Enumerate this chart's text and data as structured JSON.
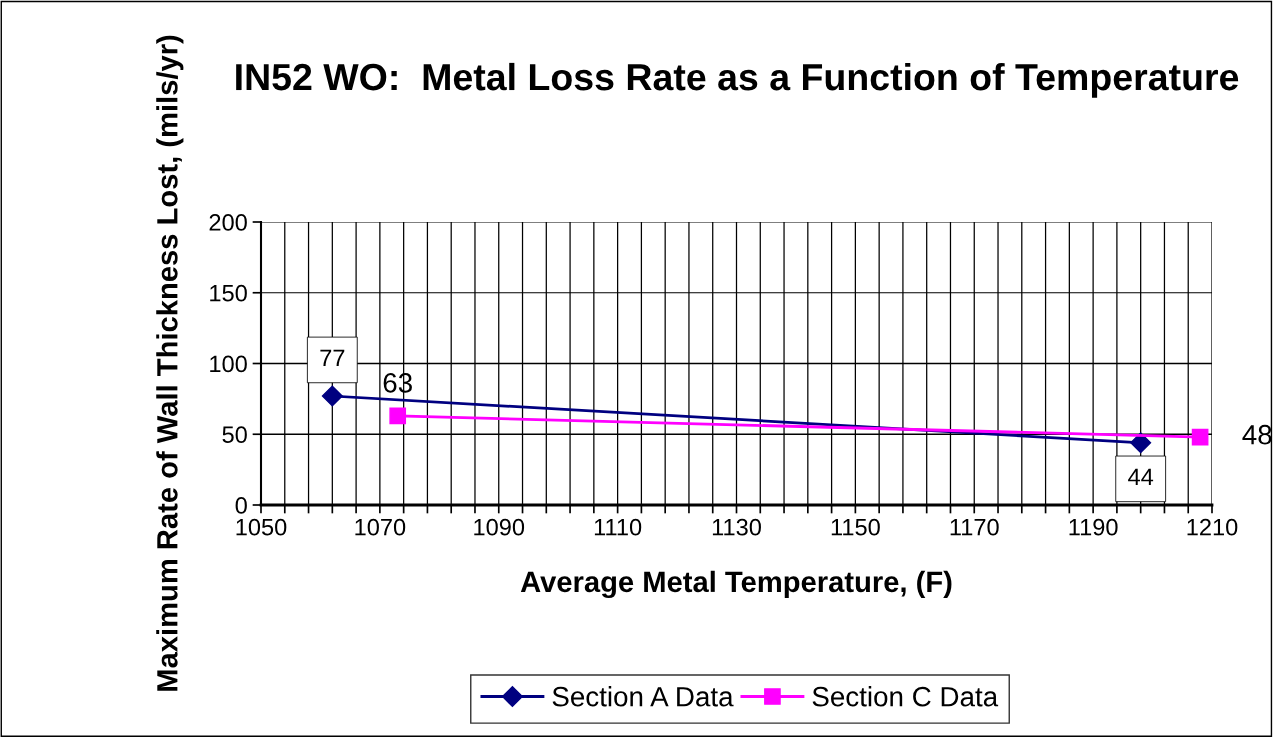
{
  "chart_data": {
    "type": "line",
    "title": "IN52 WO:  Metal Loss Rate as a Function of Temperature",
    "xlabel": "Average Metal Temperature, (F)",
    "ylabel": "Maximum Rate of Wall Thickness Lost, (mils/yr)",
    "series": [
      {
        "name": "Section A Data",
        "color": "#000080",
        "marker": "diamond",
        "x": [
          1062,
          1198
        ],
        "values": [
          77,
          44
        ]
      },
      {
        "name": "Section C Data",
        "color": "#ff00ff",
        "marker": "square",
        "x": [
          1073,
          1208
        ],
        "values": [
          63,
          48
        ]
      }
    ],
    "xlim": [
      1050,
      1210
    ],
    "xticks": [
      1050,
      {
        "value": 1054,
        "label": null
      },
      {
        "value": 1058,
        "label": null
      },
      {
        "value": 1062,
        "label": null
      },
      {
        "value": 1066,
        "label": null
      },
      1070,
      {
        "value": 1074,
        "label": null
      },
      {
        "value": 1078,
        "label": null
      },
      {
        "value": 1082,
        "label": null
      },
      {
        "value": 1086,
        "label": null
      },
      1090,
      {
        "value": 1094,
        "label": null
      },
      {
        "value": 1098,
        "label": null
      },
      {
        "value": 1102,
        "label": null
      },
      {
        "value": 1106,
        "label": null
      },
      1110,
      {
        "value": 1114,
        "label": null
      },
      {
        "value": 1118,
        "label": null
      },
      {
        "value": 1122,
        "label": null
      },
      {
        "value": 1126,
        "label": null
      },
      1130,
      {
        "value": 1134,
        "label": null
      },
      {
        "value": 1138,
        "label": null
      },
      {
        "value": 1142,
        "label": null
      },
      {
        "value": 1146,
        "label": null
      },
      1150,
      {
        "value": 1154,
        "label": null
      },
      {
        "value": 1158,
        "label": null
      },
      {
        "value": 1162,
        "label": null
      },
      {
        "value": 1166,
        "label": null
      },
      1170,
      {
        "value": 1174,
        "label": null
      },
      {
        "value": 1178,
        "label": null
      },
      {
        "value": 1182,
        "label": null
      },
      {
        "value": 1186,
        "label": null
      },
      1190,
      {
        "value": 1194,
        "label": null
      },
      {
        "value": 1198,
        "label": null
      },
      {
        "value": 1202,
        "label": null
      },
      {
        "value": 1206,
        "label": null
      },
      1210
    ],
    "ylim": [
      0,
      200
    ],
    "yticks": [
      0,
      50,
      100,
      150,
      200
    ],
    "grid": true,
    "legend": "bottom",
    "data_labels": true,
    "line_style": "solid"
  }
}
